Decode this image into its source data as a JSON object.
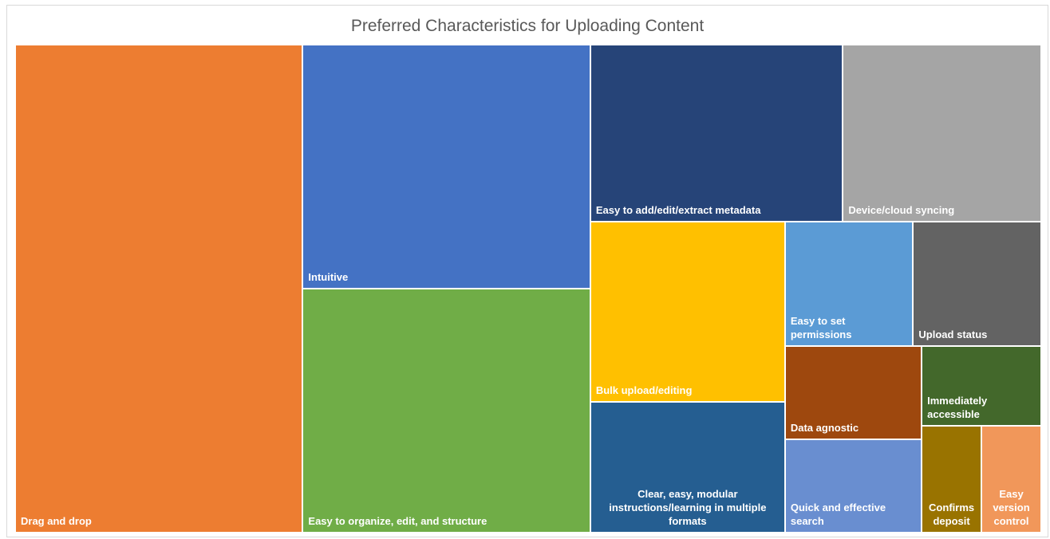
{
  "chart_data": {
    "type": "treemap",
    "title": "Preferred Characteristics for Uploading Content",
    "categories": [
      "Drag and drop",
      "Intuitive",
      "Easy to organize, edit, and structure",
      "Easy to add/edit/extract metadata",
      "Device/cloud syncing",
      "Bulk upload/editing",
      "Clear, easy, modular instructions/learning in multiple formats",
      "Easy to set permissions",
      "Upload status",
      "Data agnostic",
      "Quick and effective search",
      "Immediately accessible",
      "Confirms deposit",
      "Easy version control"
    ],
    "values": [
      44,
      22,
      22,
      14,
      11,
      11,
      8,
      5,
      5,
      4,
      4,
      3,
      2,
      2
    ],
    "colors": [
      "#ed7d31",
      "#4472c4",
      "#70ad47",
      "#264478",
      "#a5a5a5",
      "#ffc000",
      "#255e91",
      "#5b9bd5",
      "#636363",
      "#9e480e",
      "#698ed0",
      "#43682b",
      "#997300",
      "#f1975a"
    ]
  }
}
